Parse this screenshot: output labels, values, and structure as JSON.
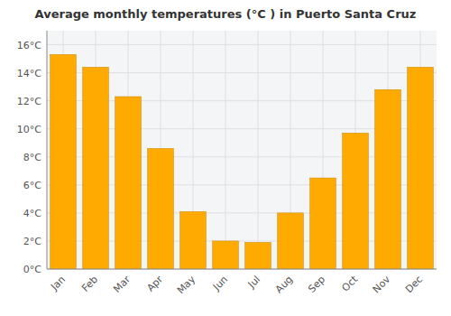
{
  "chart_data": {
    "type": "bar",
    "title": "Average monthly temperatures (°C ) in Puerto Santa Cruz",
    "categories": [
      "Jan",
      "Feb",
      "Mar",
      "Apr",
      "May",
      "Jun",
      "Jul",
      "Aug",
      "Sep",
      "Oct",
      "Nov",
      "Dec"
    ],
    "values": [
      15.3,
      14.4,
      12.3,
      8.6,
      4.1,
      2.0,
      1.9,
      4.0,
      6.5,
      9.7,
      12.8,
      14.4
    ],
    "color": "#FFAA00",
    "ylim": [
      0,
      17
    ],
    "yticks": [
      {
        "value": 0,
        "label": "0°C"
      },
      {
        "value": 2,
        "label": "2°C"
      },
      {
        "value": 4,
        "label": "4°C"
      },
      {
        "value": 6,
        "label": "6°C"
      },
      {
        "value": 8,
        "label": "8°C"
      },
      {
        "value": 10,
        "label": "10°C"
      },
      {
        "value": 12,
        "label": "12°C"
      },
      {
        "value": 14,
        "label": "14°C"
      },
      {
        "value": 16,
        "label": "16°C"
      }
    ],
    "grid": true
  }
}
